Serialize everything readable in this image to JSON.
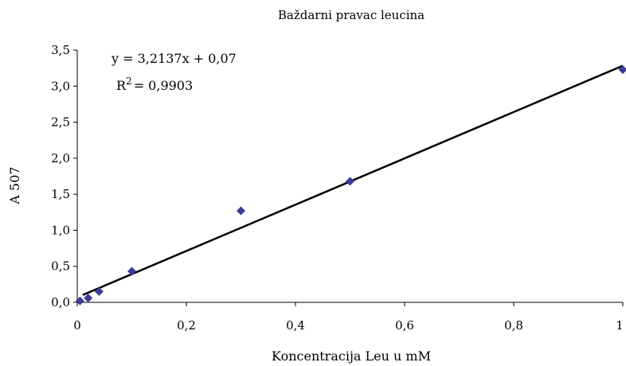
{
  "chart_data": {
    "type": "scatter",
    "title": "Baždarni pravac leucina",
    "xlabel": "Koncentracija Leu u mM",
    "ylabel": "A 507",
    "xlim": [
      0,
      1
    ],
    "ylim": [
      0,
      3.5
    ],
    "x_ticks": [
      "0",
      "0,2",
      "0,4",
      "0,6",
      "0,8",
      "1"
    ],
    "y_ticks": [
      "0,0",
      "0,5",
      "1,0",
      "1,5",
      "2,0",
      "2,5",
      "3,0",
      "3,5"
    ],
    "grid": false,
    "legend": "none",
    "series": [
      {
        "marker": "diamond",
        "color": "#3b3b98",
        "points": [
          {
            "x": 0.005,
            "y": 0.02
          },
          {
            "x": 0.02,
            "y": 0.06
          },
          {
            "x": 0.04,
            "y": 0.15
          },
          {
            "x": 0.1,
            "y": 0.43
          },
          {
            "x": 0.3,
            "y": 1.27
          },
          {
            "x": 0.5,
            "y": 1.68
          },
          {
            "x": 1.0,
            "y": 3.23
          }
        ]
      }
    ],
    "trendline": {
      "slope": 3.2137,
      "intercept": 0.07,
      "x_range": [
        0.01,
        1.0
      ],
      "color": "#000000",
      "equation_label": "y = 3,2137x + 0,07",
      "r2_prefix": "R",
      "r2_sup": "2",
      "r2_value": "= 0,9903"
    }
  }
}
